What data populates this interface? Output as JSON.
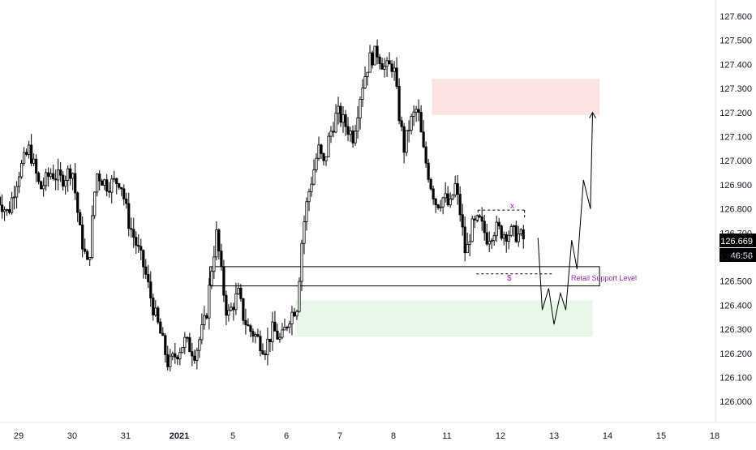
{
  "chart_data": {
    "type": "candlestick",
    "symbol_price_last": "126.669",
    "countdown": "46:56",
    "y_axis": {
      "range": [
        126.0,
        127.6
      ],
      "ticks": [
        "127.600",
        "127.500",
        "127.400",
        "127.300",
        "127.200",
        "127.100",
        "127.000",
        "126.900",
        "126.800",
        "126.700",
        "126.600",
        "126.500",
        "126.400",
        "126.300",
        "126.200",
        "126.100",
        "126.000"
      ]
    },
    "x_axis": {
      "ticks": [
        {
          "label": "29",
          "day": -3
        },
        {
          "label": "30",
          "day": -2
        },
        {
          "label": "31",
          "day": -1
        },
        {
          "label": "2021",
          "day": 0
        },
        {
          "label": "5",
          "day": 1
        },
        {
          "label": "6",
          "day": 2
        },
        {
          "label": "7",
          "day": 3
        },
        {
          "label": "8",
          "day": 4
        },
        {
          "label": "11",
          "day": 5
        },
        {
          "label": "12",
          "day": 6
        },
        {
          "label": "13",
          "day": 7
        },
        {
          "label": "14",
          "day": 8
        },
        {
          "label": "15",
          "day": 9
        },
        {
          "label": "18",
          "day": 10
        }
      ]
    },
    "price_path": [
      [
        -3.4,
        126.85
      ],
      [
        -3.2,
        126.78
      ],
      [
        -3.0,
        126.95
      ],
      [
        -2.8,
        127.05
      ],
      [
        -2.6,
        126.88
      ],
      [
        -2.4,
        126.95
      ],
      [
        -2.2,
        126.92
      ],
      [
        -2.0,
        126.97
      ],
      [
        -1.85,
        126.7
      ],
      [
        -1.7,
        126.55
      ],
      [
        -1.55,
        126.95
      ],
      [
        -1.35,
        126.9
      ],
      [
        -1.1,
        126.92
      ],
      [
        -0.95,
        126.75
      ],
      [
        -0.8,
        126.65
      ],
      [
        -0.65,
        126.55
      ],
      [
        -0.5,
        126.4
      ],
      [
        -0.35,
        126.28
      ],
      [
        -0.2,
        126.15
      ],
      [
        -0.05,
        126.2
      ],
      [
        0.1,
        126.25
      ],
      [
        0.3,
        126.2
      ],
      [
        0.5,
        126.35
      ],
      [
        0.6,
        126.55
      ],
      [
        0.7,
        126.7
      ],
      [
        0.8,
        126.5
      ],
      [
        0.9,
        126.35
      ],
      [
        1.0,
        126.4
      ],
      [
        1.1,
        126.45
      ],
      [
        1.2,
        126.35
      ],
      [
        1.3,
        126.3
      ],
      [
        1.4,
        126.28
      ],
      [
        1.5,
        126.25
      ],
      [
        1.6,
        126.22
      ],
      [
        1.75,
        126.3
      ],
      [
        1.9,
        126.25
      ],
      [
        2.05,
        126.35
      ],
      [
        2.2,
        126.4
      ],
      [
        2.3,
        126.7
      ],
      [
        2.4,
        126.85
      ],
      [
        2.5,
        126.95
      ],
      [
        2.6,
        127.05
      ],
      [
        2.7,
        126.98
      ],
      [
        2.8,
        127.1
      ],
      [
        2.95,
        127.2
      ],
      [
        3.1,
        127.15
      ],
      [
        3.25,
        127.1
      ],
      [
        3.4,
        127.3
      ],
      [
        3.55,
        127.42
      ],
      [
        3.7,
        127.45
      ],
      [
        3.85,
        127.38
      ],
      [
        4.0,
        127.4
      ],
      [
        4.1,
        127.2
      ],
      [
        4.2,
        127.05
      ],
      [
        4.3,
        127.15
      ],
      [
        4.45,
        127.22
      ],
      [
        4.55,
        127.05
      ],
      [
        4.7,
        126.9
      ],
      [
        4.8,
        126.82
      ],
      [
        4.95,
        126.85
      ],
      [
        5.05,
        126.8
      ],
      [
        5.15,
        126.9
      ],
      [
        5.25,
        126.78
      ],
      [
        5.35,
        126.6
      ],
      [
        5.45,
        126.72
      ],
      [
        5.6,
        126.75
      ],
      [
        5.75,
        126.68
      ],
      [
        5.9,
        126.72
      ],
      [
        6.05,
        126.7
      ],
      [
        6.2,
        126.7
      ],
      [
        6.35,
        126.69
      ],
      [
        6.45,
        126.67
      ]
    ],
    "zones": [
      {
        "label": "supply",
        "color": "#fde3e3",
        "y1": 127.34,
        "y2": 127.19,
        "d1": 4.72,
        "d2": 7.85
      },
      {
        "label": "demand",
        "color": "#e9f6ea",
        "y1": 126.42,
        "y2": 126.27,
        "d1": 2.17,
        "d2": 7.72
      },
      {
        "label": "retail_support_box",
        "y1": 126.56,
        "y2": 126.48,
        "d1": 0.57,
        "d2": 7.85
      }
    ],
    "annotations": {
      "retail_support_level": "Retail Support Level",
      "x_mark": "x",
      "dollar_mark": "$"
    },
    "projection_path": [
      [
        6.7,
        126.68
      ],
      [
        6.78,
        126.38
      ],
      [
        6.9,
        126.47
      ],
      [
        7.0,
        126.32
      ],
      [
        7.12,
        126.45
      ],
      [
        7.22,
        126.38
      ],
      [
        7.33,
        126.67
      ],
      [
        7.43,
        126.55
      ],
      [
        7.55,
        126.92
      ],
      [
        7.68,
        126.8
      ],
      [
        7.72,
        127.2
      ]
    ],
    "range_box": {
      "y1": 126.795,
      "y2": 126.55,
      "d1": 5.58,
      "d2": 6.45
    },
    "colors": {
      "candle": "#000000",
      "price_label_bg": "#000000",
      "price_label_fg": "#ffffff",
      "annotation_text": "#9c27b0",
      "axis_text": "#131722"
    }
  }
}
